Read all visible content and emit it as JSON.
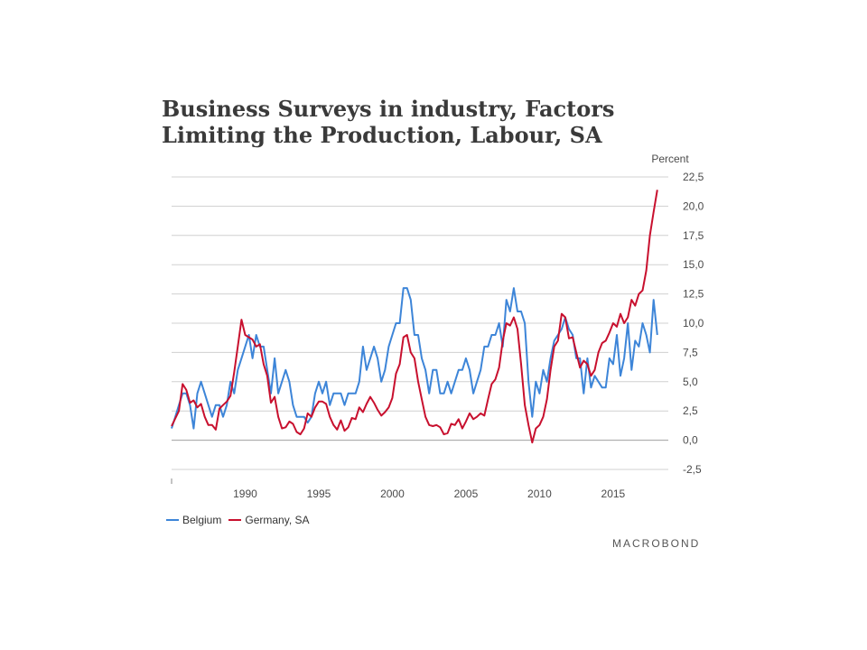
{
  "title_lines": [
    "Business Surveys in industry, Factors",
    "Limiting the Production, Labour, SA"
  ],
  "brand": "MACROBOND",
  "chart_data": {
    "type": "line",
    "title": "Business Surveys in industry, Factors Limiting the Production, Labour, SA",
    "ylabel": "Percent",
    "ylim": [
      -2.5,
      22.5
    ],
    "xlim": [
      1985,
      2018.75
    ],
    "y_ticks": [
      "22,5",
      "20,0",
      "17,5",
      "15,0",
      "12,5",
      "10,0",
      "7,5",
      "5,0",
      "2,5",
      "0,0",
      "-2,5"
    ],
    "y_tick_values": [
      22.5,
      20,
      17.5,
      15,
      12.5,
      10,
      7.5,
      5,
      2.5,
      0,
      -2.5
    ],
    "x_ticks": [
      "1990",
      "1995",
      "2000",
      "2005",
      "2010",
      "2015"
    ],
    "x_tick_values": [
      1990,
      1995,
      2000,
      2005,
      2010,
      2015
    ],
    "grid": "horizontal",
    "legend_position": "bottom-left",
    "series": [
      {
        "name": "Belgium",
        "color": "#3d85d8",
        "points": [
          [
            1985.0,
            1.0
          ],
          [
            1985.25,
            2.0
          ],
          [
            1985.5,
            3.0
          ],
          [
            1985.75,
            4.0
          ],
          [
            1986.0,
            4.0
          ],
          [
            1986.25,
            3.0
          ],
          [
            1986.5,
            1.0
          ],
          [
            1986.75,
            4.0
          ],
          [
            1987.0,
            5.0
          ],
          [
            1987.25,
            4.0
          ],
          [
            1987.5,
            3.0
          ],
          [
            1987.75,
            2.0
          ],
          [
            1988.0,
            3.0
          ],
          [
            1988.25,
            3.0
          ],
          [
            1988.5,
            2.0
          ],
          [
            1988.75,
            3.0
          ],
          [
            1989.0,
            5.0
          ],
          [
            1989.25,
            4.0
          ],
          [
            1989.5,
            6.0
          ],
          [
            1989.75,
            7.0
          ],
          [
            1990.0,
            8.0
          ],
          [
            1990.25,
            9.0
          ],
          [
            1990.5,
            7.0
          ],
          [
            1990.75,
            9.0
          ],
          [
            1991.0,
            8.0
          ],
          [
            1991.25,
            8.0
          ],
          [
            1991.5,
            6.0
          ],
          [
            1991.75,
            4.0
          ],
          [
            1992.0,
            7.0
          ],
          [
            1992.25,
            4.0
          ],
          [
            1992.5,
            5.0
          ],
          [
            1992.75,
            6.0
          ],
          [
            1993.0,
            5.0
          ],
          [
            1993.25,
            3.0
          ],
          [
            1993.5,
            2.0
          ],
          [
            1993.75,
            2.0
          ],
          [
            1994.0,
            2.0
          ],
          [
            1994.25,
            1.5
          ],
          [
            1994.5,
            2.0
          ],
          [
            1994.75,
            4.0
          ],
          [
            1995.0,
            5.0
          ],
          [
            1995.25,
            4.0
          ],
          [
            1995.5,
            5.0
          ],
          [
            1995.75,
            3.0
          ],
          [
            1996.0,
            4.0
          ],
          [
            1996.25,
            4.0
          ],
          [
            1996.5,
            4.0
          ],
          [
            1996.75,
            3.0
          ],
          [
            1997.0,
            4.0
          ],
          [
            1997.25,
            4.0
          ],
          [
            1997.5,
            4.0
          ],
          [
            1997.75,
            5.0
          ],
          [
            1998.0,
            8.0
          ],
          [
            1998.25,
            6.0
          ],
          [
            1998.5,
            7.0
          ],
          [
            1998.75,
            8.0
          ],
          [
            1999.0,
            7.0
          ],
          [
            1999.25,
            5.0
          ],
          [
            1999.5,
            6.0
          ],
          [
            1999.75,
            8.0
          ],
          [
            2000.0,
            9.0
          ],
          [
            2000.25,
            10.0
          ],
          [
            2000.5,
            10.0
          ],
          [
            2000.75,
            13.0
          ],
          [
            2001.0,
            13.0
          ],
          [
            2001.25,
            12.0
          ],
          [
            2001.5,
            9.0
          ],
          [
            2001.75,
            9.0
          ],
          [
            2002.0,
            7.0
          ],
          [
            2002.25,
            6.0
          ],
          [
            2002.5,
            4.0
          ],
          [
            2002.75,
            6.0
          ],
          [
            2003.0,
            6.0
          ],
          [
            2003.25,
            4.0
          ],
          [
            2003.5,
            4.0
          ],
          [
            2003.75,
            5.0
          ],
          [
            2004.0,
            4.0
          ],
          [
            2004.25,
            5.0
          ],
          [
            2004.5,
            6.0
          ],
          [
            2004.75,
            6.0
          ],
          [
            2005.0,
            7.0
          ],
          [
            2005.25,
            6.0
          ],
          [
            2005.5,
            4.0
          ],
          [
            2005.75,
            5.0
          ],
          [
            2006.0,
            6.0
          ],
          [
            2006.25,
            8.0
          ],
          [
            2006.5,
            8.0
          ],
          [
            2006.75,
            9.0
          ],
          [
            2007.0,
            9.0
          ],
          [
            2007.25,
            10.0
          ],
          [
            2007.5,
            8.0
          ],
          [
            2007.75,
            12.0
          ],
          [
            2008.0,
            11.0
          ],
          [
            2008.25,
            13.0
          ],
          [
            2008.5,
            11.0
          ],
          [
            2008.75,
            11.0
          ],
          [
            2009.0,
            10.0
          ],
          [
            2009.25,
            5.0
          ],
          [
            2009.5,
            2.0
          ],
          [
            2009.75,
            5.0
          ],
          [
            2010.0,
            4.0
          ],
          [
            2010.25,
            6.0
          ],
          [
            2010.5,
            5.0
          ],
          [
            2010.75,
            7.0
          ],
          [
            2011.0,
            8.5
          ],
          [
            2011.25,
            9.0
          ],
          [
            2011.5,
            9.5
          ],
          [
            2011.75,
            10.5
          ],
          [
            2012.0,
            9.5
          ],
          [
            2012.25,
            9.0
          ],
          [
            2012.5,
            7.0
          ],
          [
            2012.75,
            7.0
          ],
          [
            2013.0,
            4.0
          ],
          [
            2013.25,
            7.0
          ],
          [
            2013.5,
            4.5
          ],
          [
            2013.75,
            5.5
          ],
          [
            2014.0,
            5.0
          ],
          [
            2014.25,
            4.5
          ],
          [
            2014.5,
            4.5
          ],
          [
            2014.75,
            7.0
          ],
          [
            2015.0,
            6.5
          ],
          [
            2015.25,
            9.0
          ],
          [
            2015.5,
            5.5
          ],
          [
            2015.75,
            7.0
          ],
          [
            2016.0,
            10.0
          ],
          [
            2016.25,
            6.0
          ],
          [
            2016.5,
            8.5
          ],
          [
            2016.75,
            8.0
          ],
          [
            2017.0,
            10.0
          ],
          [
            2017.25,
            9.0
          ],
          [
            2017.5,
            7.5
          ],
          [
            2017.75,
            12.0
          ],
          [
            2018.0,
            9.0
          ]
        ]
      },
      {
        "name": "Germany, SA",
        "color": "#c8102e",
        "points": [
          [
            1985.0,
            1.2
          ],
          [
            1985.5,
            2.5
          ],
          [
            1985.75,
            4.8
          ],
          [
            1986.0,
            4.3
          ],
          [
            1986.25,
            3.2
          ],
          [
            1986.5,
            3.4
          ],
          [
            1986.75,
            2.8
          ],
          [
            1987.0,
            3.1
          ],
          [
            1987.25,
            2.0
          ],
          [
            1987.5,
            1.3
          ],
          [
            1987.75,
            1.3
          ],
          [
            1988.0,
            0.9
          ],
          [
            1988.25,
            2.7
          ],
          [
            1988.5,
            3.0
          ],
          [
            1988.75,
            3.3
          ],
          [
            1989.0,
            3.8
          ],
          [
            1989.25,
            5.8
          ],
          [
            1989.5,
            8.0
          ],
          [
            1989.75,
            10.3
          ],
          [
            1990.0,
            9.0
          ],
          [
            1990.25,
            8.8
          ],
          [
            1990.5,
            8.6
          ],
          [
            1990.75,
            8.0
          ],
          [
            1991.0,
            8.2
          ],
          [
            1991.25,
            6.5
          ],
          [
            1991.5,
            5.5
          ],
          [
            1991.75,
            3.2
          ],
          [
            1992.0,
            3.7
          ],
          [
            1992.25,
            2.0
          ],
          [
            1992.5,
            1.0
          ],
          [
            1992.75,
            1.1
          ],
          [
            1993.0,
            1.6
          ],
          [
            1993.25,
            1.4
          ],
          [
            1993.5,
            0.7
          ],
          [
            1993.75,
            0.5
          ],
          [
            1994.0,
            1.0
          ],
          [
            1994.25,
            2.3
          ],
          [
            1994.5,
            2.0
          ],
          [
            1994.75,
            2.8
          ],
          [
            1995.0,
            3.3
          ],
          [
            1995.25,
            3.3
          ],
          [
            1995.5,
            3.1
          ],
          [
            1995.75,
            2.0
          ],
          [
            1996.0,
            1.3
          ],
          [
            1996.25,
            0.9
          ],
          [
            1996.5,
            1.7
          ],
          [
            1996.75,
            0.8
          ],
          [
            1997.0,
            1.1
          ],
          [
            1997.25,
            1.9
          ],
          [
            1997.5,
            1.8
          ],
          [
            1997.75,
            2.8
          ],
          [
            1998.0,
            2.4
          ],
          [
            1998.25,
            3.1
          ],
          [
            1998.5,
            3.7
          ],
          [
            1998.75,
            3.2
          ],
          [
            1999.0,
            2.6
          ],
          [
            1999.25,
            2.1
          ],
          [
            1999.5,
            2.4
          ],
          [
            1999.75,
            2.8
          ],
          [
            2000.0,
            3.6
          ],
          [
            2000.25,
            5.7
          ],
          [
            2000.5,
            6.5
          ],
          [
            2000.75,
            8.8
          ],
          [
            2001.0,
            9.0
          ],
          [
            2001.25,
            7.5
          ],
          [
            2001.5,
            7.0
          ],
          [
            2001.75,
            5.0
          ],
          [
            2002.0,
            3.5
          ],
          [
            2002.25,
            2.0
          ],
          [
            2002.5,
            1.3
          ],
          [
            2002.75,
            1.2
          ],
          [
            2003.0,
            1.3
          ],
          [
            2003.25,
            1.1
          ],
          [
            2003.5,
            0.5
          ],
          [
            2003.75,
            0.6
          ],
          [
            2004.0,
            1.4
          ],
          [
            2004.25,
            1.3
          ],
          [
            2004.5,
            1.8
          ],
          [
            2004.75,
            1.0
          ],
          [
            2005.0,
            1.6
          ],
          [
            2005.25,
            2.3
          ],
          [
            2005.5,
            1.8
          ],
          [
            2005.75,
            2.0
          ],
          [
            2006.0,
            2.3
          ],
          [
            2006.25,
            2.1
          ],
          [
            2006.5,
            3.5
          ],
          [
            2006.75,
            4.8
          ],
          [
            2007.0,
            5.2
          ],
          [
            2007.25,
            6.2
          ],
          [
            2007.5,
            8.5
          ],
          [
            2007.75,
            10.0
          ],
          [
            2008.0,
            9.8
          ],
          [
            2008.25,
            10.5
          ],
          [
            2008.5,
            9.5
          ],
          [
            2008.75,
            6.5
          ],
          [
            2009.0,
            3.0
          ],
          [
            2009.25,
            1.3
          ],
          [
            2009.5,
            -0.2
          ],
          [
            2009.75,
            1.0
          ],
          [
            2010.0,
            1.3
          ],
          [
            2010.25,
            2.0
          ],
          [
            2010.5,
            3.5
          ],
          [
            2010.75,
            6.0
          ],
          [
            2011.0,
            8.0
          ],
          [
            2011.25,
            8.5
          ],
          [
            2011.5,
            10.8
          ],
          [
            2011.75,
            10.5
          ],
          [
            2012.0,
            8.7
          ],
          [
            2012.25,
            8.8
          ],
          [
            2012.5,
            7.5
          ],
          [
            2012.75,
            6.2
          ],
          [
            2013.0,
            6.8
          ],
          [
            2013.25,
            6.5
          ],
          [
            2013.5,
            5.5
          ],
          [
            2013.75,
            6.0
          ],
          [
            2014.0,
            7.5
          ],
          [
            2014.25,
            8.3
          ],
          [
            2014.5,
            8.5
          ],
          [
            2014.75,
            9.2
          ],
          [
            2015.0,
            10.0
          ],
          [
            2015.25,
            9.7
          ],
          [
            2015.5,
            10.8
          ],
          [
            2015.75,
            10.0
          ],
          [
            2016.0,
            10.5
          ],
          [
            2016.25,
            12.0
          ],
          [
            2016.5,
            11.5
          ],
          [
            2016.75,
            12.5
          ],
          [
            2017.0,
            12.8
          ],
          [
            2017.25,
            14.5
          ],
          [
            2017.5,
            17.5
          ],
          [
            2017.75,
            19.5
          ],
          [
            2018.0,
            21.4
          ]
        ]
      }
    ]
  }
}
